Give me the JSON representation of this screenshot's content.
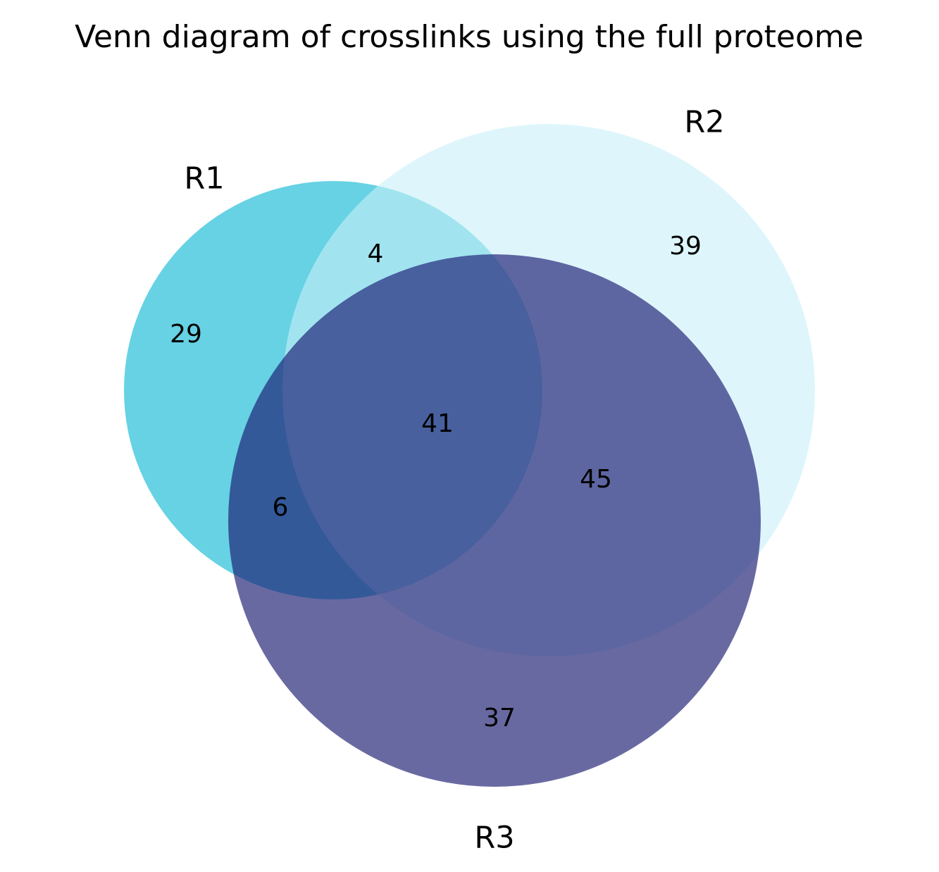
{
  "chart_data": {
    "type": "venn",
    "title": "Venn diagram of crosslinks using the full proteome",
    "sets": [
      {
        "name": "R1",
        "color": "#00b4d2",
        "opacity": 0.6,
        "size": 80
      },
      {
        "name": "R2",
        "color": "#c8f0f8",
        "opacity": 0.6,
        "size": 129
      },
      {
        "name": "R3",
        "color": "#191970",
        "opacity": 0.65,
        "size": 129
      }
    ],
    "regions": [
      {
        "sets": [
          "R1"
        ],
        "value": 29
      },
      {
        "sets": [
          "R2"
        ],
        "value": 39
      },
      {
        "sets": [
          "R3"
        ],
        "value": 37
      },
      {
        "sets": [
          "R1",
          "R2"
        ],
        "value": 4
      },
      {
        "sets": [
          "R1",
          "R3"
        ],
        "value": 6
      },
      {
        "sets": [
          "R2",
          "R3"
        ],
        "value": 45
      },
      {
        "sets": [
          "R1",
          "R2",
          "R3"
        ],
        "value": 41
      }
    ]
  }
}
